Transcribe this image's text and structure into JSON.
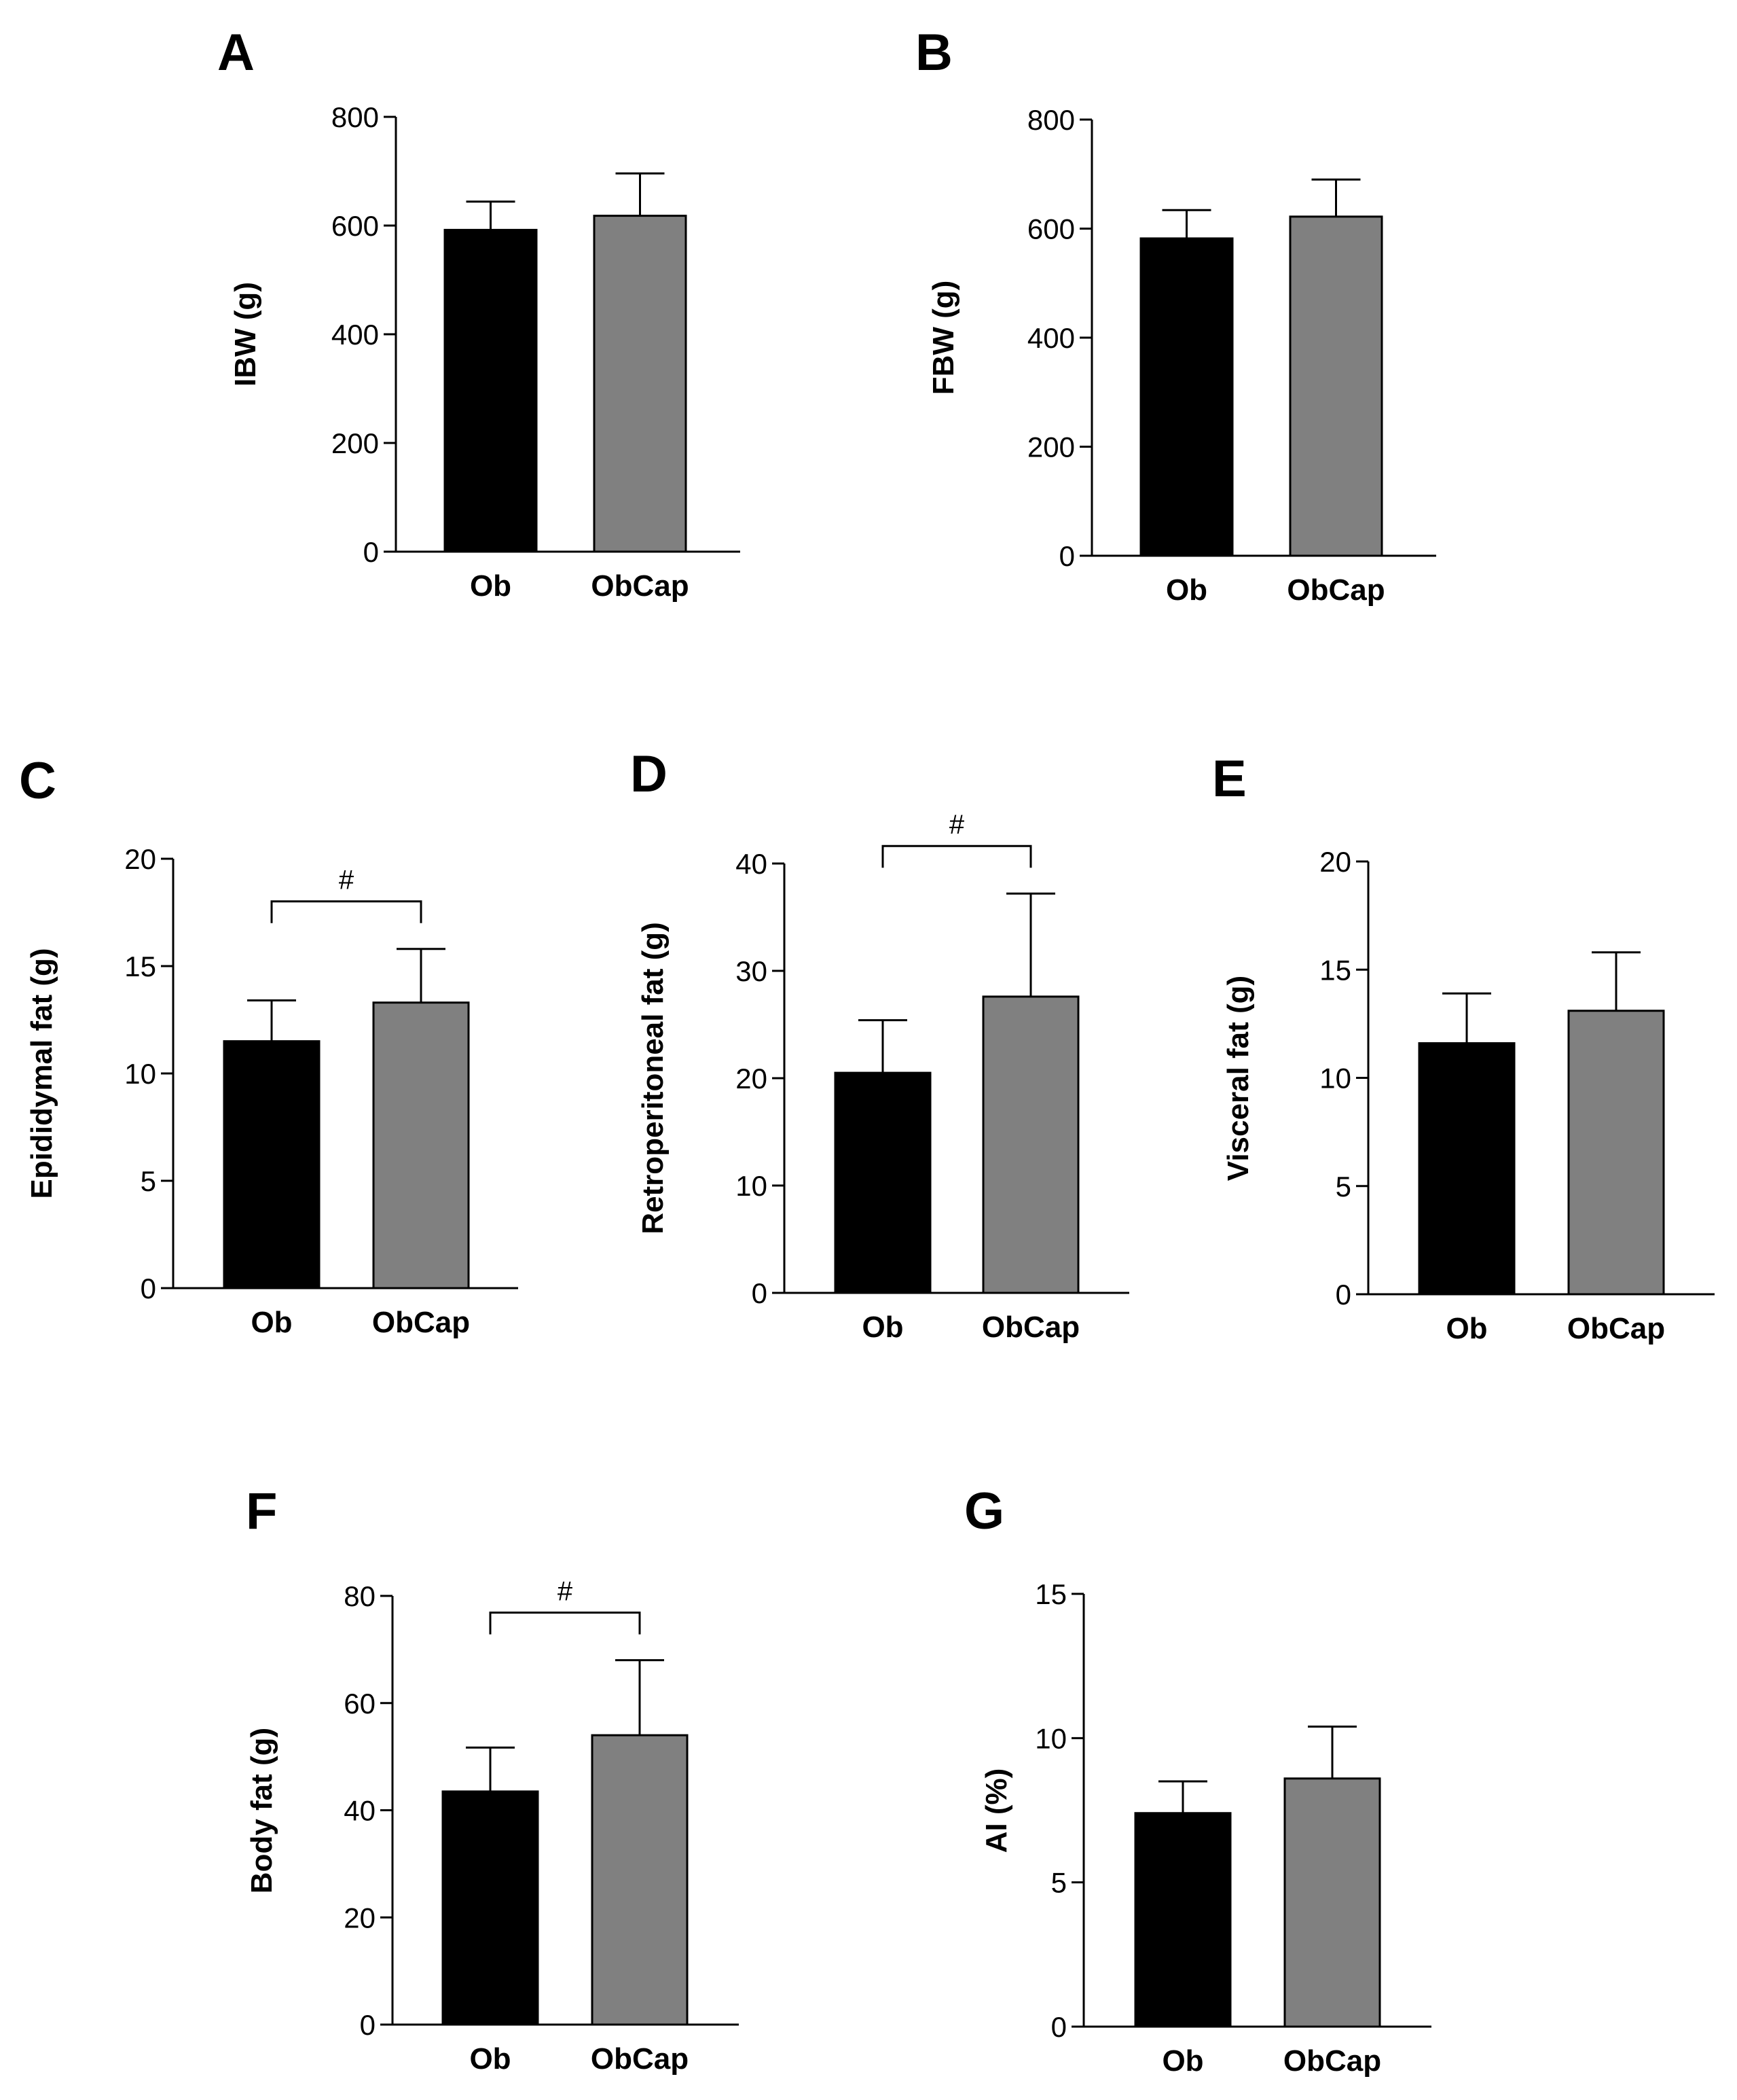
{
  "colors": {
    "Ob": "#000000",
    "ObCap": "#808080",
    "axis": "#000000"
  },
  "chart_data": [
    {
      "panel": "A",
      "type": "bar",
      "categories": [
        "Ob",
        "ObCap"
      ],
      "values": [
        592,
        618
      ],
      "errors": [
        52,
        78
      ],
      "ylabel": "IBW (g)",
      "ylim": [
        0,
        800
      ],
      "ticks": [
        0,
        200,
        400,
        600,
        800
      ],
      "significance": null
    },
    {
      "panel": "B",
      "type": "bar",
      "categories": [
        "Ob",
        "ObCap"
      ],
      "values": [
        582,
        622
      ],
      "errors": [
        52,
        68
      ],
      "ylabel": "FBW (g)",
      "ylim": [
        0,
        800
      ],
      "ticks": [
        0,
        200,
        400,
        600,
        800
      ],
      "significance": null
    },
    {
      "panel": "C",
      "type": "bar",
      "categories": [
        "Ob",
        "ObCap"
      ],
      "values": [
        11.5,
        13.3
      ],
      "errors": [
        1.9,
        2.5
      ],
      "ylabel": "Epididymal fat (g)",
      "ylim": [
        0,
        20
      ],
      "ticks": [
        0,
        5,
        10,
        15,
        20
      ],
      "significance": "#"
    },
    {
      "panel": "D",
      "type": "bar",
      "categories": [
        "Ob",
        "ObCap"
      ],
      "values": [
        20.5,
        27.6
      ],
      "errors": [
        4.9,
        9.6
      ],
      "ylabel": "Retroperitoneal fat (g)",
      "ylim": [
        0,
        40
      ],
      "ticks": [
        0,
        10,
        20,
        30,
        40
      ],
      "significance": "#"
    },
    {
      "panel": "E",
      "type": "bar",
      "categories": [
        "Ob",
        "ObCap"
      ],
      "values": [
        11.6,
        13.1
      ],
      "errors": [
        2.3,
        2.7
      ],
      "ylabel": "Visceral fat (g)",
      "ylim": [
        0,
        20
      ],
      "ticks": [
        0,
        5,
        10,
        15,
        20
      ],
      "significance": null
    },
    {
      "panel": "F",
      "type": "bar",
      "categories": [
        "Ob",
        "ObCap"
      ],
      "values": [
        43.5,
        54
      ],
      "errors": [
        8.2,
        14
      ],
      "ylabel": "Body fat (g)",
      "ylim": [
        0,
        80
      ],
      "ticks": [
        0,
        20,
        40,
        60,
        80
      ],
      "significance": "#"
    },
    {
      "panel": "G",
      "type": "bar",
      "categories": [
        "Ob",
        "ObCap"
      ],
      "values": [
        7.4,
        8.6
      ],
      "errors": [
        1.1,
        1.8
      ],
      "ylabel": "AI (%)",
      "ylim": [
        0,
        15
      ],
      "ticks": [
        0,
        5,
        10,
        15
      ],
      "significance": null
    }
  ]
}
